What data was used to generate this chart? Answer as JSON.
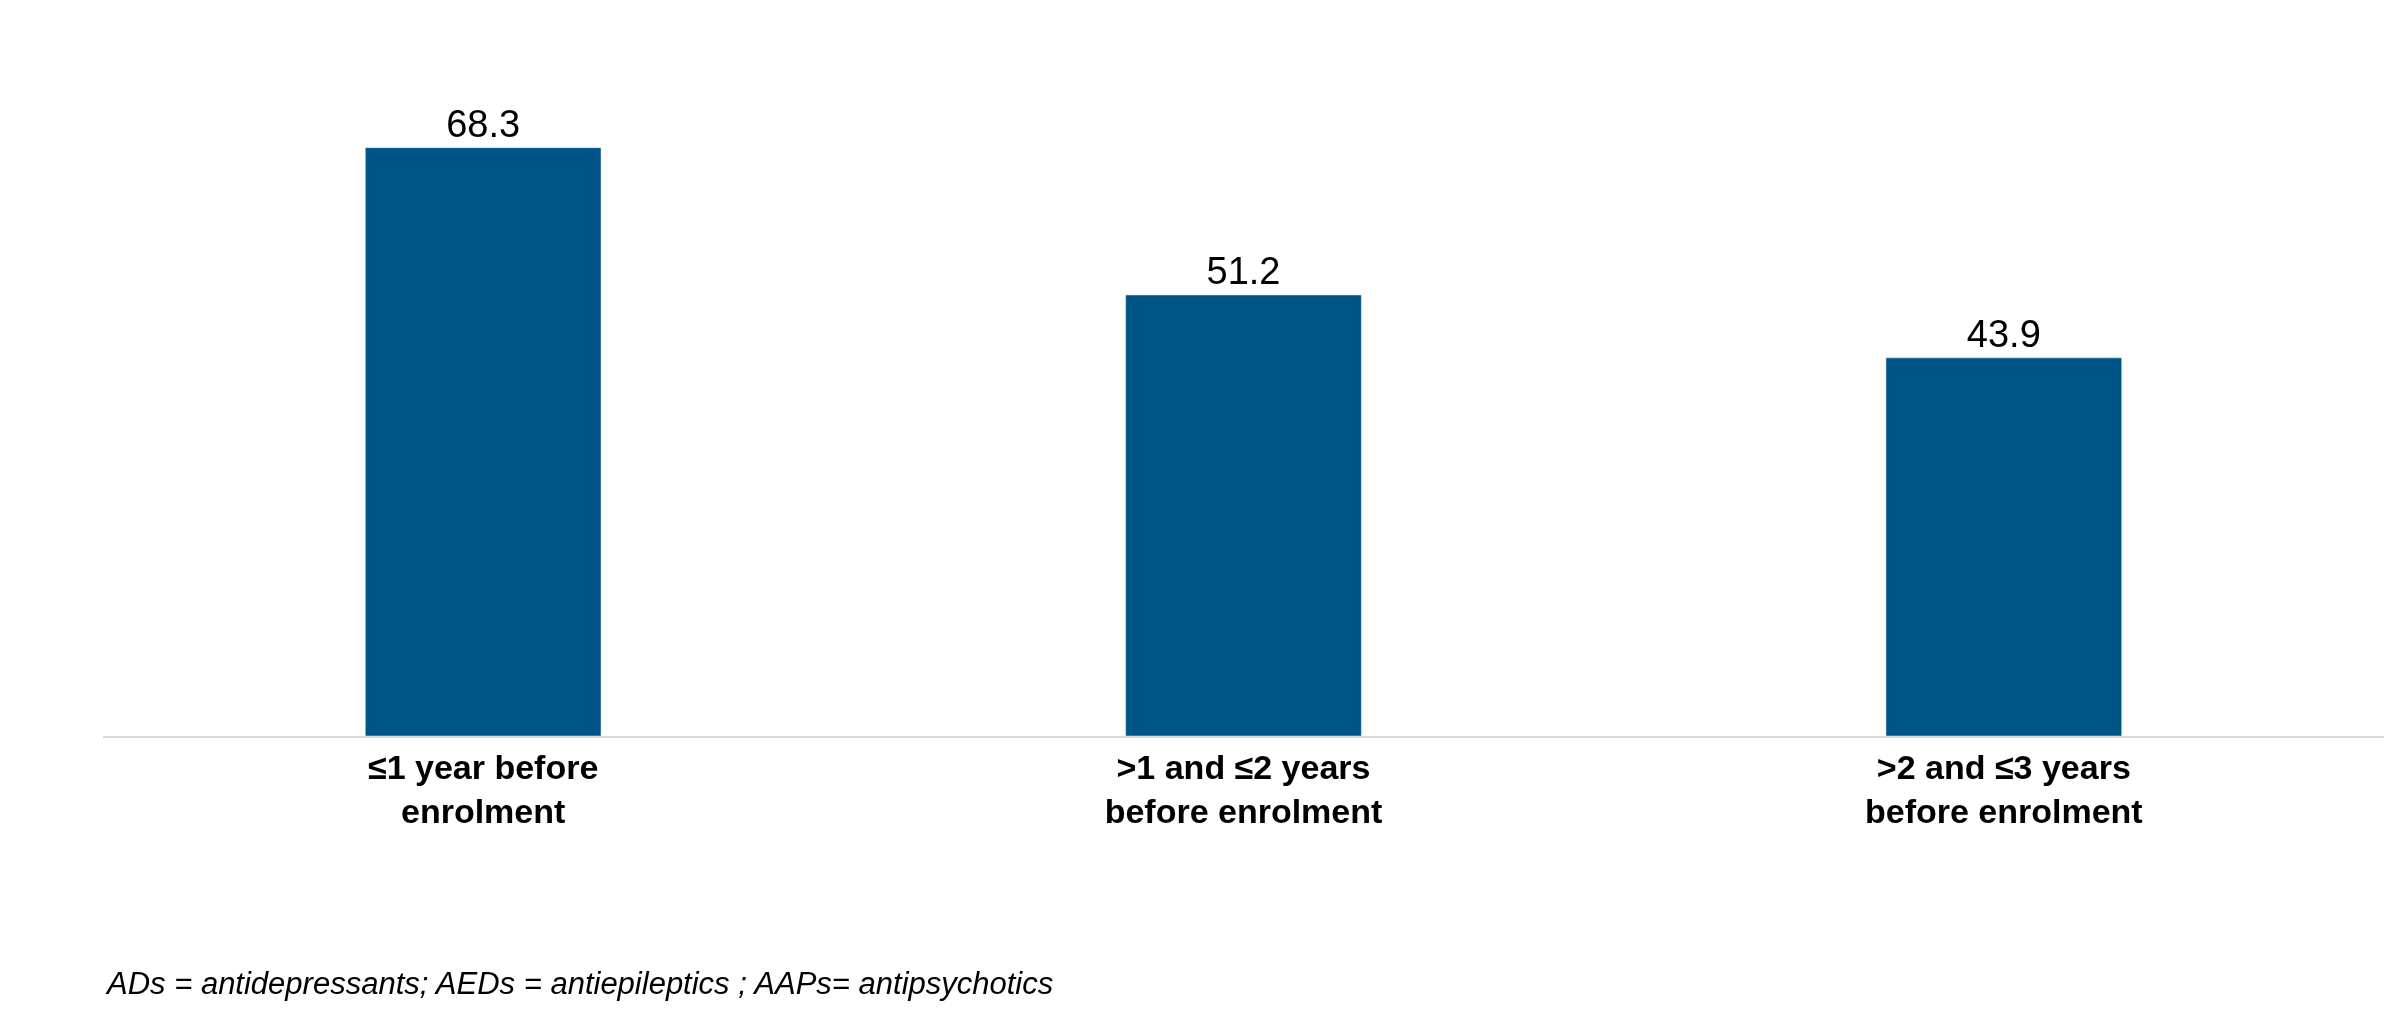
{
  "chart_data": {
    "type": "bar",
    "categories": [
      "≤1 year before enrolment",
      ">1 and ≤2 years before enrolment",
      ">2 and ≤3 years before enrolment"
    ],
    "values": [
      68.3,
      51.2,
      43.9
    ],
    "color": "#005587",
    "data_labels": true,
    "annotations": [
      "ADs = antidepressants; AEDs = antiepileptics ; AAPs= antipsychotics"
    ]
  }
}
